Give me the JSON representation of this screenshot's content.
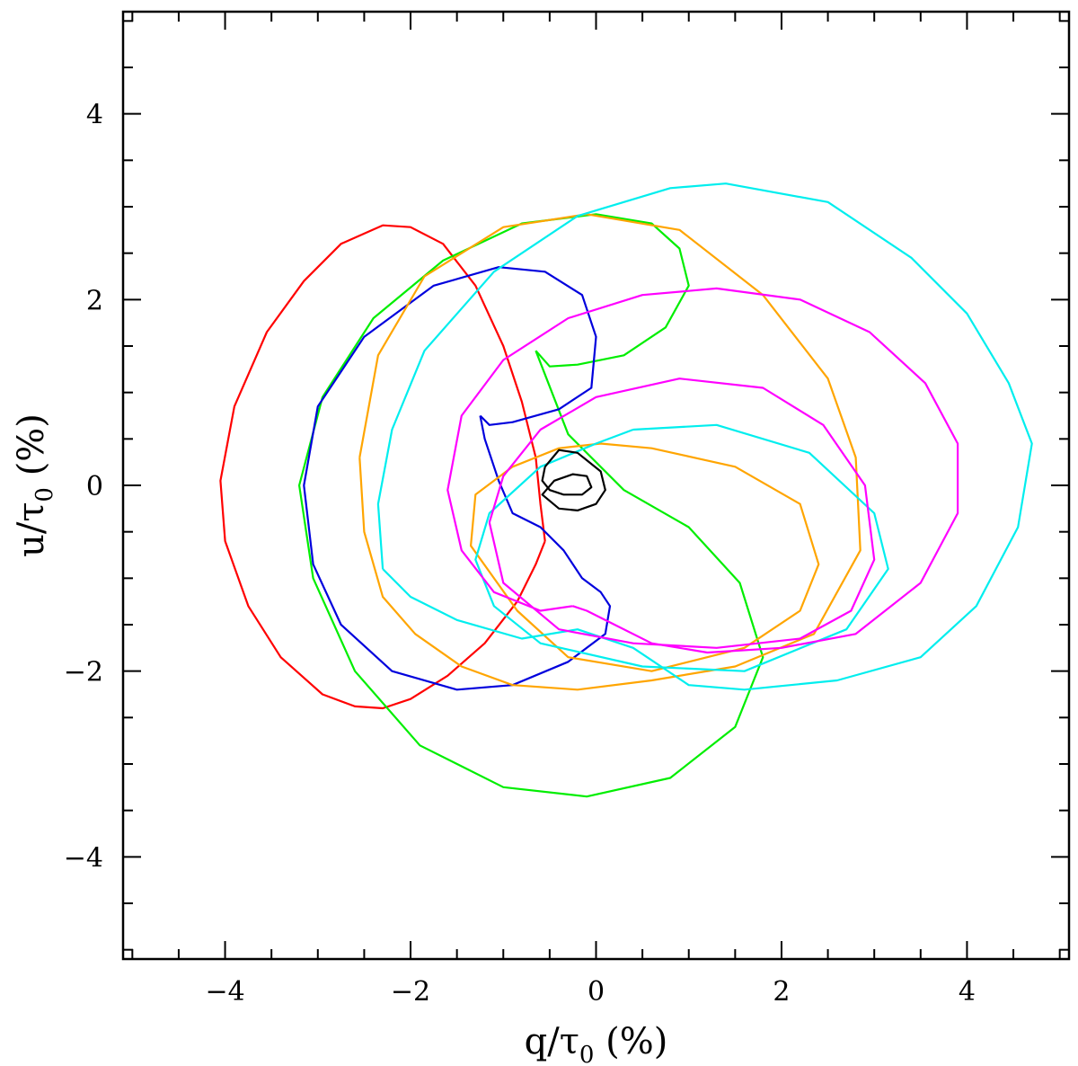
{
  "chart_data": {
    "type": "line",
    "title": "",
    "xlabel": "q/τ0 (%)",
    "ylabel": "u/τ0 (%)",
    "xlabel_parts": {
      "pre": "q/τ",
      "sub": "0",
      "post": " (%)"
    },
    "ylabel_parts": {
      "pre": "u/τ",
      "sub": "0",
      "post": " (%)"
    },
    "xlim": [
      -5.1,
      5.1
    ],
    "ylim": [
      -5.1,
      5.1
    ],
    "x_major_ticks": [
      -4,
      -2,
      0,
      2,
      4
    ],
    "y_major_ticks": [
      -4,
      -2,
      0,
      2,
      4
    ],
    "x_tick_labels": [
      "−4",
      "−2",
      "0",
      "2",
      "4"
    ],
    "y_tick_labels": [
      "−4",
      "−2",
      "0",
      "2",
      "4"
    ],
    "minor_tick_step": 0.5,
    "grid": false,
    "legend": "none",
    "series": [
      {
        "color": "#ff0000",
        "points": [
          [
            -0.55,
            -0.6
          ],
          [
            -0.6,
            -0.2
          ],
          [
            -0.65,
            0.3
          ],
          [
            -0.8,
            0.9
          ],
          [
            -1.0,
            1.5
          ],
          [
            -1.3,
            2.15
          ],
          [
            -1.65,
            2.6
          ],
          [
            -2.0,
            2.78
          ],
          [
            -2.3,
            2.8
          ],
          [
            -2.75,
            2.6
          ],
          [
            -3.15,
            2.2
          ],
          [
            -3.55,
            1.65
          ],
          [
            -3.9,
            0.85
          ],
          [
            -4.05,
            0.05
          ],
          [
            -4.0,
            -0.6
          ],
          [
            -3.75,
            -1.3
          ],
          [
            -3.4,
            -1.85
          ],
          [
            -2.95,
            -2.25
          ],
          [
            -2.6,
            -2.38
          ],
          [
            -2.3,
            -2.4
          ],
          [
            -2.0,
            -2.3
          ],
          [
            -1.6,
            -2.05
          ],
          [
            -1.2,
            -1.7
          ],
          [
            -0.85,
            -1.25
          ],
          [
            -0.65,
            -0.85
          ],
          [
            -0.55,
            -0.6
          ]
        ]
      },
      {
        "color": "#00ee00",
        "points": [
          [
            -0.65,
            1.45
          ],
          [
            -0.5,
            1.28
          ],
          [
            -0.2,
            1.3
          ],
          [
            0.3,
            1.4
          ],
          [
            0.75,
            1.7
          ],
          [
            1.0,
            2.15
          ],
          [
            0.9,
            2.55
          ],
          [
            0.6,
            2.82
          ],
          [
            0.0,
            2.92
          ],
          [
            -0.8,
            2.82
          ],
          [
            -1.65,
            2.42
          ],
          [
            -2.4,
            1.8
          ],
          [
            -2.95,
            0.95
          ],
          [
            -3.2,
            0.0
          ],
          [
            -3.05,
            -1.0
          ],
          [
            -2.6,
            -2.0
          ],
          [
            -1.9,
            -2.8
          ],
          [
            -1.0,
            -3.25
          ],
          [
            -0.1,
            -3.35
          ],
          [
            0.8,
            -3.15
          ],
          [
            1.5,
            -2.6
          ],
          [
            1.8,
            -1.85
          ],
          [
            1.55,
            -1.05
          ],
          [
            1.0,
            -0.45
          ],
          [
            0.3,
            -0.05
          ],
          [
            -0.3,
            0.55
          ],
          [
            -0.65,
            1.45
          ]
        ]
      },
      {
        "color": "#0000dd",
        "points": [
          [
            -1.25,
            0.75
          ],
          [
            -1.15,
            0.65
          ],
          [
            -0.9,
            0.68
          ],
          [
            -0.4,
            0.82
          ],
          [
            -0.05,
            1.05
          ],
          [
            0.0,
            1.6
          ],
          [
            -0.15,
            2.05
          ],
          [
            -0.55,
            2.3
          ],
          [
            -1.05,
            2.35
          ],
          [
            -1.75,
            2.15
          ],
          [
            -2.5,
            1.6
          ],
          [
            -3.0,
            0.85
          ],
          [
            -3.15,
            0.0
          ],
          [
            -3.05,
            -0.85
          ],
          [
            -2.75,
            -1.5
          ],
          [
            -2.2,
            -2.0
          ],
          [
            -1.5,
            -2.2
          ],
          [
            -0.9,
            -2.15
          ],
          [
            -0.3,
            -1.9
          ],
          [
            0.1,
            -1.6
          ],
          [
            0.15,
            -1.3
          ],
          [
            0.05,
            -1.15
          ],
          [
            -0.15,
            -1.0
          ],
          [
            -0.35,
            -0.7
          ],
          [
            -0.6,
            -0.45
          ],
          [
            -0.9,
            -0.3
          ],
          [
            -1.05,
            0.05
          ],
          [
            -1.2,
            0.5
          ],
          [
            -1.25,
            0.75
          ]
        ]
      },
      {
        "color": "#ffa500",
        "points": [
          [
            0.05,
            0.45
          ],
          [
            0.6,
            0.4
          ],
          [
            1.5,
            0.2
          ],
          [
            2.2,
            -0.2
          ],
          [
            2.4,
            -0.85
          ],
          [
            2.2,
            -1.35
          ],
          [
            1.6,
            -1.75
          ],
          [
            0.6,
            -2.0
          ],
          [
            -0.3,
            -1.85
          ],
          [
            -0.85,
            -1.35
          ],
          [
            -1.35,
            -0.65
          ],
          [
            -1.3,
            -0.1
          ],
          [
            -0.9,
            0.2
          ],
          [
            -0.4,
            0.4
          ],
          [
            0.05,
            0.45
          ]
        ]
      },
      {
        "color": "#ffa500",
        "points": [
          [
            -2.55,
            0.3
          ],
          [
            -2.35,
            1.4
          ],
          [
            -1.85,
            2.25
          ],
          [
            -1.0,
            2.78
          ],
          [
            -0.1,
            2.92
          ],
          [
            0.9,
            2.75
          ],
          [
            1.8,
            2.05
          ],
          [
            2.5,
            1.15
          ],
          [
            2.8,
            0.3
          ],
          [
            2.85,
            -0.7
          ],
          [
            2.35,
            -1.6
          ],
          [
            1.5,
            -1.95
          ],
          [
            0.6,
            -2.1
          ],
          [
            -0.2,
            -2.2
          ],
          [
            -0.9,
            -2.15
          ],
          [
            -1.45,
            -1.95
          ],
          [
            -1.95,
            -1.6
          ],
          [
            -2.3,
            -1.2
          ],
          [
            -2.5,
            -0.5
          ],
          [
            -2.55,
            0.3
          ]
        ]
      },
      {
        "color": "#00eeee",
        "points": [
          [
            0.4,
            0.6
          ],
          [
            1.3,
            0.65
          ],
          [
            2.3,
            0.35
          ],
          [
            3.0,
            -0.3
          ],
          [
            3.15,
            -0.9
          ],
          [
            2.7,
            -1.55
          ],
          [
            1.6,
            -2.0
          ],
          [
            0.5,
            -1.95
          ],
          [
            -0.6,
            -1.7
          ],
          [
            -1.1,
            -1.3
          ],
          [
            -1.3,
            -0.8
          ],
          [
            -1.15,
            -0.3
          ],
          [
            -0.6,
            0.2
          ],
          [
            0.0,
            0.45
          ],
          [
            0.4,
            0.6
          ]
        ]
      },
      {
        "color": "#00eeee",
        "points": [
          [
            -2.3,
            -0.9
          ],
          [
            -2.35,
            -0.2
          ],
          [
            -2.2,
            0.6
          ],
          [
            -1.85,
            1.45
          ],
          [
            -1.1,
            2.3
          ],
          [
            -0.2,
            2.9
          ],
          [
            0.8,
            3.2
          ],
          [
            1.4,
            3.25
          ],
          [
            2.5,
            3.05
          ],
          [
            3.4,
            2.45
          ],
          [
            4.0,
            1.85
          ],
          [
            4.45,
            1.1
          ],
          [
            4.7,
            0.45
          ],
          [
            4.55,
            -0.45
          ],
          [
            4.1,
            -1.3
          ],
          [
            3.5,
            -1.85
          ],
          [
            2.6,
            -2.1
          ],
          [
            1.6,
            -2.2
          ],
          [
            1.0,
            -2.15
          ],
          [
            0.4,
            -1.75
          ],
          [
            -0.2,
            -1.55
          ],
          [
            -0.8,
            -1.65
          ],
          [
            -1.5,
            -1.45
          ],
          [
            -2.0,
            -1.2
          ],
          [
            -2.3,
            -0.9
          ]
        ]
      },
      {
        "color": "#ff00ff",
        "points": [
          [
            -0.25,
            -1.3
          ],
          [
            -0.6,
            -1.35
          ],
          [
            -1.1,
            -1.15
          ],
          [
            -1.45,
            -0.7
          ],
          [
            -1.6,
            -0.05
          ],
          [
            -1.45,
            0.75
          ],
          [
            -1.0,
            1.35
          ],
          [
            -0.3,
            1.8
          ],
          [
            0.5,
            2.05
          ],
          [
            1.3,
            2.12
          ],
          [
            2.2,
            2.0
          ],
          [
            2.95,
            1.65
          ],
          [
            3.55,
            1.1
          ],
          [
            3.9,
            0.45
          ],
          [
            3.9,
            -0.3
          ],
          [
            3.5,
            -1.05
          ],
          [
            2.8,
            -1.6
          ],
          [
            2.0,
            -1.75
          ],
          [
            1.2,
            -1.8
          ],
          [
            0.6,
            -1.7
          ],
          [
            0.2,
            -1.5
          ],
          [
            -0.1,
            -1.35
          ],
          [
            -0.25,
            -1.3
          ]
        ]
      },
      {
        "color": "#ff00ff",
        "points": [
          [
            -1.15,
            -0.4
          ],
          [
            -1.0,
            0.1
          ],
          [
            -0.6,
            0.6
          ],
          [
            0.0,
            0.95
          ],
          [
            0.9,
            1.15
          ],
          [
            1.8,
            1.05
          ],
          [
            2.45,
            0.65
          ],
          [
            2.9,
            0.0
          ],
          [
            3.0,
            -0.8
          ],
          [
            2.75,
            -1.35
          ],
          [
            2.2,
            -1.65
          ],
          [
            1.3,
            -1.75
          ],
          [
            0.4,
            -1.7
          ],
          [
            -0.4,
            -1.55
          ],
          [
            -1.0,
            -1.05
          ],
          [
            -1.15,
            -0.4
          ]
        ]
      },
      {
        "color": "#000000",
        "points": [
          [
            -0.55,
            0.2
          ],
          [
            -0.4,
            0.38
          ],
          [
            -0.2,
            0.35
          ],
          [
            0.05,
            0.15
          ],
          [
            0.1,
            -0.05
          ],
          [
            0.0,
            -0.2
          ],
          [
            -0.2,
            -0.27
          ],
          [
            -0.4,
            -0.25
          ],
          [
            -0.58,
            -0.1
          ],
          [
            -0.45,
            0.05
          ],
          [
            -0.25,
            0.12
          ],
          [
            -0.1,
            0.1
          ],
          [
            -0.05,
            -0.02
          ],
          [
            -0.15,
            -0.1
          ],
          [
            -0.35,
            -0.1
          ],
          [
            -0.5,
            -0.05
          ],
          [
            -0.58,
            0.05
          ],
          [
            -0.55,
            0.2
          ]
        ]
      }
    ]
  }
}
